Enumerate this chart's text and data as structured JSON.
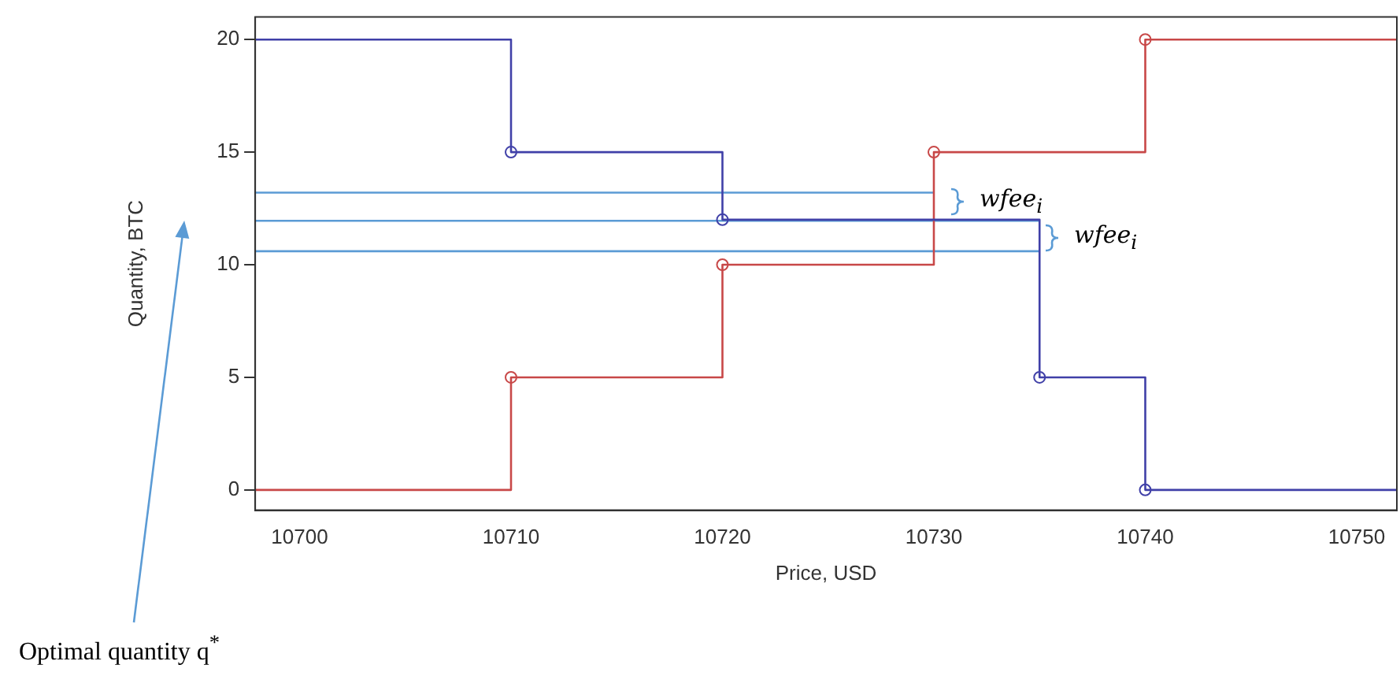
{
  "chart_data": {
    "type": "step",
    "xlabel": "Price, USD",
    "ylabel": "Quantity, BTC",
    "xlim": [
      10697.9,
      10751.9
    ],
    "ylim": [
      -0.9,
      21.0
    ],
    "xticks": [
      10700,
      10710,
      10720,
      10730,
      10740,
      10750
    ],
    "yticks": [
      0,
      5,
      10,
      15,
      20
    ],
    "grid": false,
    "legend": false,
    "marker": "circle",
    "line_style": "solid",
    "series": [
      {
        "color": "#4040a8",
        "x": [
          10697.9,
          10710,
          10720,
          10735,
          10740,
          10751.9
        ],
        "values": [
          20,
          15,
          12,
          5,
          0,
          0
        ]
      },
      {
        "color": "#c84848",
        "x": [
          10697.9,
          10710,
          10720,
          10730,
          10740,
          10751.9
        ],
        "values": [
          0,
          5,
          10,
          15,
          20,
          20
        ]
      },
      {
        "type": "line",
        "marker": "none",
        "color": "#5b9bd5",
        "x": [
          10697.9,
          10730
        ],
        "values": [
          13.2,
          13.2
        ]
      },
      {
        "type": "line",
        "marker": "none",
        "color": "#5b9bd5",
        "x": [
          10697.9,
          10735
        ],
        "values": [
          11.95,
          11.95
        ]
      },
      {
        "type": "line",
        "marker": "none",
        "color": "#5b9bd5",
        "x": [
          10697.9,
          10735
        ],
        "values": [
          10.6,
          10.6
        ]
      }
    ],
    "annotations": [
      "wfee$_{i}$",
      "wfee$_{i}$",
      "Optimal quantity q$^{*}$"
    ]
  }
}
